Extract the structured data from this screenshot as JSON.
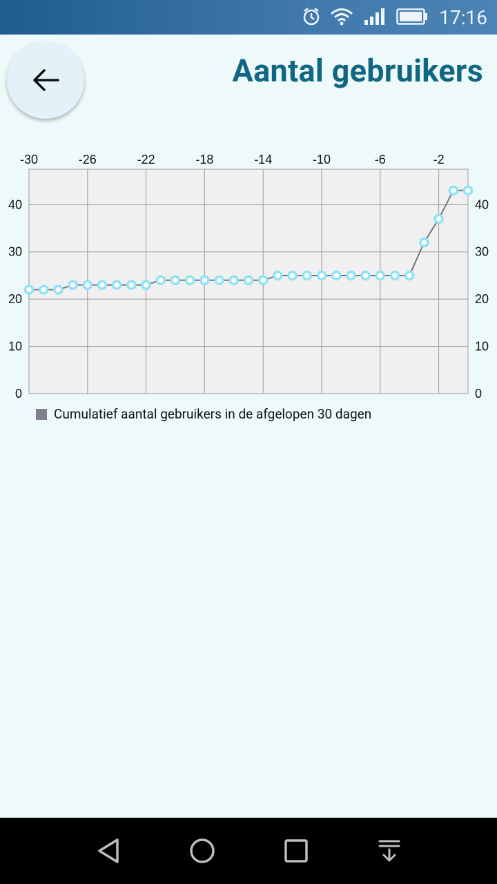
{
  "status_bar": {
    "time": "17:16",
    "icons": [
      "alarm-icon",
      "wifi-icon",
      "signal-icon",
      "battery-icon"
    ]
  },
  "header": {
    "back_icon": "arrow-left-icon",
    "title": "Aantal gebruikers"
  },
  "chart_data": {
    "type": "line",
    "x": [
      -30,
      -29,
      -28,
      -27,
      -26,
      -25,
      -24,
      -23,
      -22,
      -21,
      -20,
      -19,
      -18,
      -17,
      -16,
      -15,
      -14,
      -13,
      -12,
      -11,
      -10,
      -9,
      -8,
      -7,
      -6,
      -5,
      -4,
      -3,
      -2,
      -1,
      0
    ],
    "series": [
      {
        "name": "Cumulatief aantal gebruikers in de afgelopen 30 dagen",
        "values": [
          22,
          22,
          22,
          23,
          23,
          23,
          23,
          23,
          23,
          24,
          24,
          24,
          24,
          24,
          24,
          24,
          24,
          25,
          25,
          25,
          25,
          25,
          25,
          25,
          25,
          25,
          25,
          32,
          37,
          43,
          43
        ],
        "color": "#7a7383",
        "marker_color": "#8ee3f5"
      }
    ],
    "xlim": [
      -30,
      0
    ],
    "ylim": [
      0,
      47.5
    ],
    "x_ticks": [
      -30,
      -26,
      -22,
      -18,
      -14,
      -10,
      -6,
      -2
    ],
    "y_ticks": [
      0,
      10,
      20,
      30,
      40
    ],
    "x_tick_labels": [
      "-30",
      "-26",
      "-22",
      "-18",
      "-14",
      "-10",
      "-6",
      "-2"
    ],
    "y_tick_labels": [
      "0",
      "10",
      "20",
      "30",
      "40"
    ],
    "x_axis_position": "top",
    "y_axis_position": "both",
    "grid": true,
    "legend": "bottom-left"
  },
  "legend": {
    "label": "Cumulatief aantal gebruikers in de afgelopen 30 dagen"
  },
  "nav_bar": {
    "buttons": [
      "back-triangle-icon",
      "home-circle-icon",
      "recents-square-icon",
      "notification-pull-icon"
    ]
  },
  "colors": {
    "title": "#116684",
    "background": "#eefafa",
    "plot_background": "#f0f0f0",
    "grid": "#9a9a9a",
    "line": "#7a7383",
    "marker": "#8ee3f5"
  }
}
